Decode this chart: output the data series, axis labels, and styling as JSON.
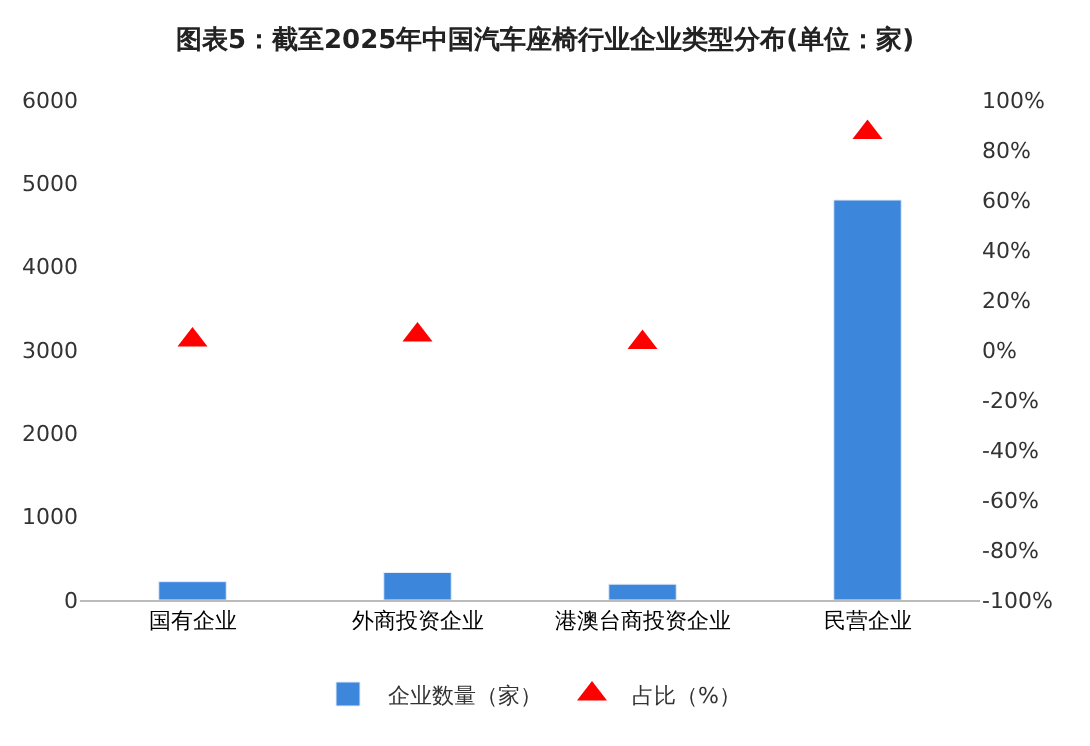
{
  "chart_data": {
    "type": "bar",
    "title": "图表5：截至2025年中国汽车座椅行业企业类型分布(单位：家)",
    "categories": [
      "国有企业",
      "外商投资企业",
      "港澳台商投资企业",
      "民营企业"
    ],
    "series": [
      {
        "name": "企业数量（家）",
        "color": "#3c87dc",
        "values": [
          220,
          330,
          190,
          4800
        ]
      },
      {
        "name": "占比（%）",
        "type": "scatter",
        "axis": "y2",
        "marker": "triangle",
        "color": "#ff0000",
        "values": [
          4,
          6,
          3,
          87
        ]
      }
    ],
    "ylim": [
      0,
      6000
    ],
    "yticks": [
      0,
      1000,
      2000,
      3000,
      4000,
      5000,
      6000
    ],
    "y2lim": [
      -100,
      100
    ],
    "y2ticks": [
      {
        "value": -100,
        "label": "-100%"
      },
      {
        "value": -80,
        "label": "-80%"
      },
      {
        "value": -60,
        "label": "-60%"
      },
      {
        "value": -40,
        "label": "-40%"
      },
      {
        "value": -20,
        "label": "-20%"
      },
      {
        "value": 0,
        "label": "0%"
      },
      {
        "value": 20,
        "label": "20%"
      },
      {
        "value": 40,
        "label": "40%"
      },
      {
        "value": 60,
        "label": "60%"
      },
      {
        "value": 80,
        "label": "80%"
      },
      {
        "value": 100,
        "label": "100%"
      }
    ],
    "legend": "bottom"
  }
}
